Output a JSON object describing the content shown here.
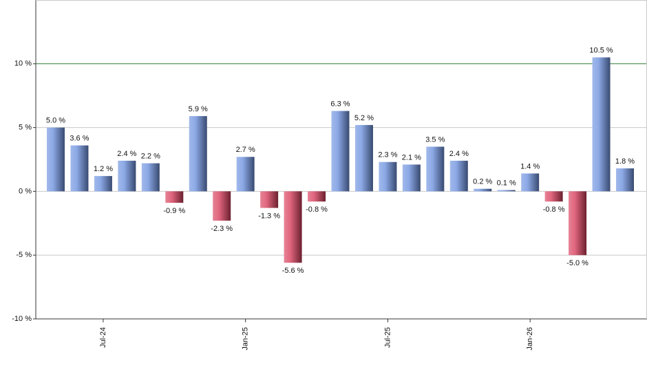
{
  "chart_data": {
    "type": "bar",
    "categories": [
      null,
      null,
      "Jul-24",
      null,
      null,
      null,
      null,
      null,
      "Jan-25",
      null,
      null,
      null,
      null,
      null,
      "Jul-25",
      null,
      null,
      null,
      null,
      null,
      "Jan-26",
      null,
      null,
      null,
      null
    ],
    "values": [
      5.0,
      3.6,
      1.2,
      2.4,
      2.2,
      -0.9,
      5.9,
      -2.3,
      2.7,
      -1.3,
      -5.6,
      -0.8,
      6.3,
      5.2,
      2.3,
      2.1,
      3.5,
      2.4,
      0.2,
      0.1,
      1.4,
      -0.8,
      -5.0,
      10.5,
      1.8
    ],
    "value_labels": [
      "5.0 %",
      "3.6 %",
      "1.2 %",
      "2.4 %",
      "2.2 %",
      "-0.9 %",
      "5.9 %",
      "-2.3 %",
      "2.7 %",
      "-1.3 %",
      "-5.6 %",
      "-0.8 %",
      "6.3 %",
      "5.2 %",
      "2.3 %",
      "2.1 %",
      "3.5 %",
      "2.4 %",
      "0.2 %",
      "0.1 %",
      "1.4 %",
      "-0.8 %",
      "-5.0 %",
      "10.5 %",
      "1.8 %"
    ],
    "color": "#6f93e0",
    "negative_color": "#d8405e",
    "ylim": [
      -10,
      15
    ],
    "yticks": [
      {
        "value": -10,
        "label": "-10 %"
      },
      {
        "value": -5,
        "label": "-5 %"
      },
      {
        "value": 0,
        "label": "0 %"
      },
      {
        "value": 5,
        "label": "5 %"
      },
      {
        "value": 10,
        "label": "10 %"
      }
    ],
    "grid": true,
    "reference_line": {
      "value": 10,
      "color": "#2e7d32"
    }
  }
}
